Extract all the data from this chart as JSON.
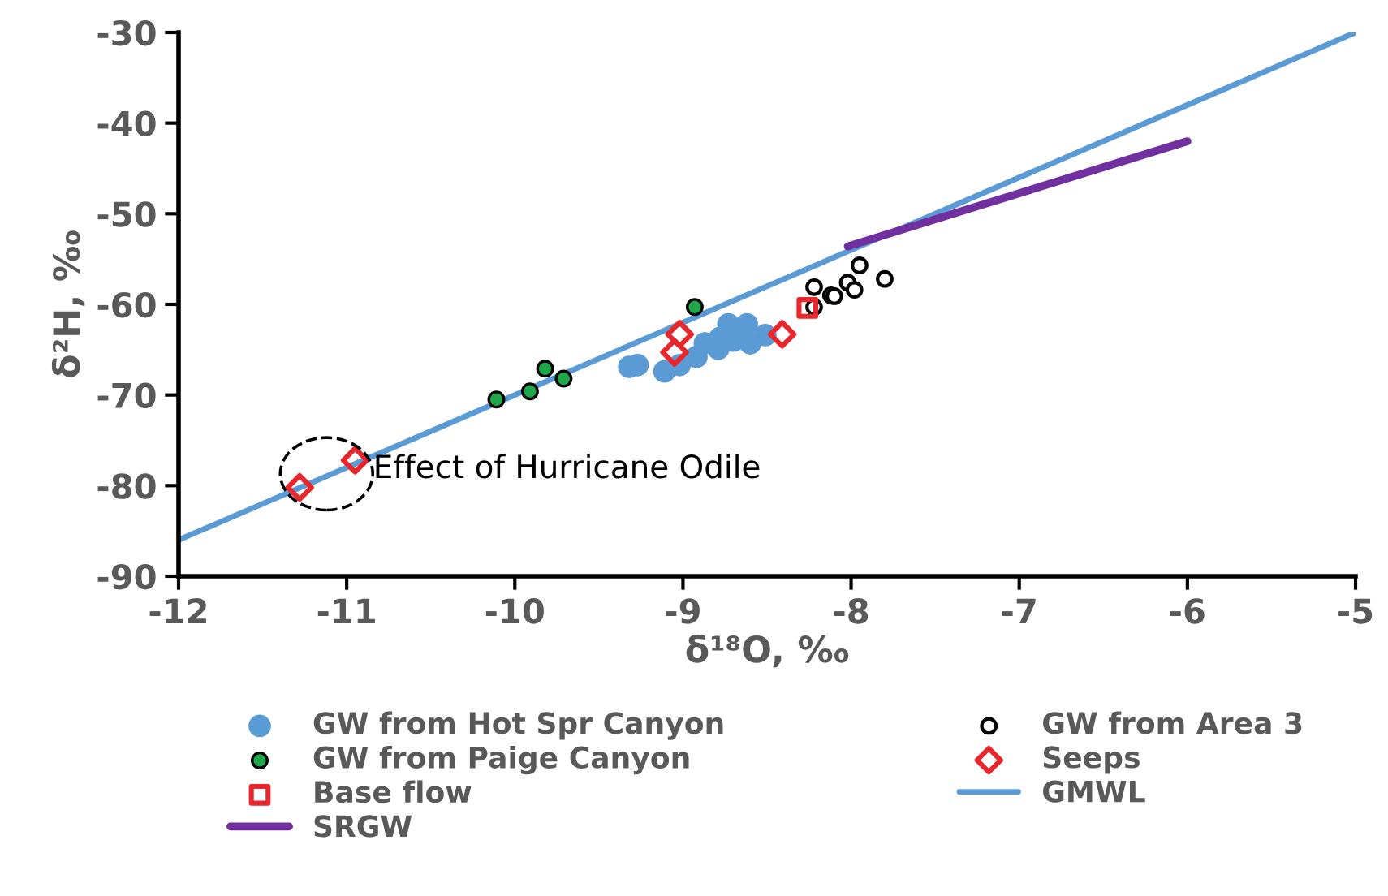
{
  "chart_data": {
    "type": "scatter",
    "xlabel": "δ¹⁸O, ‰",
    "ylabel": "δ²H, ‰",
    "xlim": [
      -12,
      -5
    ],
    "xticks": [
      -12,
      -11,
      -10,
      -9,
      -8,
      -7,
      -6,
      -5
    ],
    "ylim": [
      -90,
      -30
    ],
    "yticks": [
      -90,
      -80,
      -70,
      -60,
      -50,
      -40,
      -30
    ],
    "grid": false,
    "legend": "bottom",
    "annotations": [
      {
        "text": "Effect of Hurricane Odile",
        "x": -10.95,
        "y": -77.2
      }
    ],
    "series": [
      {
        "name": "GW from Hot Spr Canyon",
        "marker": "circle",
        "color": "#5b9bd5",
        "x": [
          -9.32,
          -9.27,
          -9.11,
          -9.02,
          -8.92,
          -8.87,
          -8.79,
          -8.73,
          -8.7,
          -8.62,
          -8.6,
          -8.51,
          -8.78
        ],
        "values": [
          -66.9,
          -66.7,
          -67.4,
          -66.7,
          -65.8,
          -64.3,
          -64.9,
          -62.2,
          -64.0,
          -62.2,
          -64.3,
          -63.4,
          -63.7
        ]
      },
      {
        "name": "GW from Area 3",
        "marker": "circle",
        "color": "#000000",
        "x": [
          -8.22,
          -8.22,
          -8.12,
          -8.1,
          -8.02,
          -7.98,
          -7.95,
          -7.8
        ],
        "values": [
          -58.1,
          -60.3,
          -59.0,
          -59.1,
          -57.6,
          -58.4,
          -55.7,
          -57.2
        ]
      },
      {
        "name": "GW from Paige Canyon",
        "marker": "circle",
        "color": "#1fa84a",
        "x": [
          -10.11,
          -9.91,
          -9.82,
          -9.71,
          -8.93
        ],
        "values": [
          -70.5,
          -69.6,
          -67.1,
          -68.2,
          -60.3
        ]
      },
      {
        "name": "Seeps",
        "marker": "diamond",
        "color": "#e8262b",
        "x": [
          -9.02,
          -9.05,
          -8.41,
          -11.28,
          -10.95
        ],
        "values": [
          -63.3,
          -65.3,
          -63.3,
          -80.2,
          -77.2
        ]
      },
      {
        "name": "Base flow",
        "marker": "square",
        "color": "#e8262b",
        "x": [
          -8.26
        ],
        "values": [
          -60.4
        ]
      },
      {
        "name": "GMWL",
        "type": "line",
        "marker": "none",
        "color": "#5b9bd5",
        "x": [
          -12,
          -5
        ],
        "values": [
          -86,
          -30
        ]
      },
      {
        "name": "SRGW",
        "type": "line",
        "marker": "none",
        "color": "#7030a0",
        "x": [
          -8.02,
          -6.0
        ],
        "values": [
          -53.6,
          -42.0
        ]
      }
    ]
  }
}
